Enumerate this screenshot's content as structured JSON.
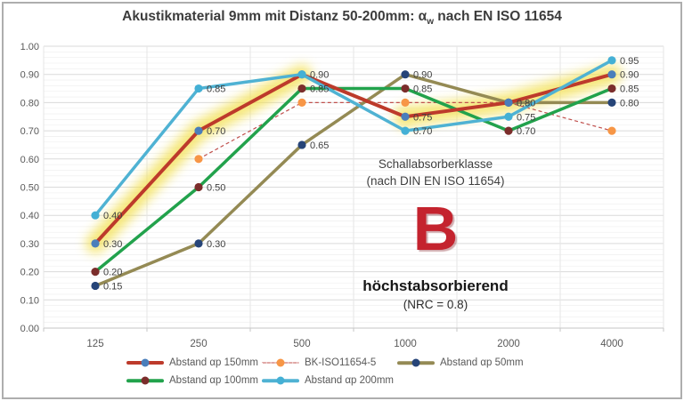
{
  "title": {
    "prefix": "Akustikmaterial 9mm mit Distanz 50-200mm: α",
    "sub": "w",
    "suffix": " nach EN ISO 11654"
  },
  "annotations": {
    "class_heading_line1": "Schallabsorberklasse",
    "class_heading_line2": "(nach DIN EN ISO 11654)",
    "class_letter": "B",
    "class_letter_color": "#c4232e",
    "class_description": "höchstabsorbierend",
    "nrc_note": "(NRC = 0.8)"
  },
  "legend": {
    "rows": [
      [
        0,
        1,
        2
      ],
      [
        3,
        4
      ]
    ]
  },
  "chart_data": {
    "type": "line",
    "title": "Akustikmaterial 9mm mit Distanz 50-200mm: αw nach EN ISO 11654",
    "xlabel": "",
    "ylabel": "",
    "x_type": "category",
    "categories": [
      "125",
      "250",
      "500",
      "1000",
      "2000",
      "4000"
    ],
    "ylim": [
      0.0,
      1.0
    ],
    "ytick_step": 0.1,
    "ytick_labels": [
      "1.00",
      "0.90",
      "0.80",
      "0.70",
      "0.60",
      "0.50",
      "0.40",
      "0.30",
      "0.20",
      "0.10",
      "0.00"
    ],
    "grid": true,
    "minor_grid": true,
    "legend_position": "bottom",
    "series": [
      {
        "name": "Abstand αp 150mm",
        "values": [
          0.3,
          0.7,
          0.9,
          0.75,
          0.8,
          0.9
        ],
        "line_color": "#bd3a2b",
        "marker_color": "#4a7ebb",
        "line_width": 4,
        "dash": null,
        "labels": [
          true,
          true,
          true,
          true,
          false,
          true
        ]
      },
      {
        "name": "BK-ISO11654-5",
        "values": [
          null,
          0.6,
          0.8,
          0.8,
          0.8,
          0.7
        ],
        "line_color": "#c0504d",
        "marker_color": "#f79646",
        "line_width": 1.2,
        "dash": "4 3",
        "labels": [
          false,
          false,
          false,
          false,
          false,
          false
        ]
      },
      {
        "name": "Abstand  αp 50mm",
        "values": [
          0.15,
          0.3,
          0.65,
          0.9,
          0.8,
          0.8
        ],
        "line_color": "#948a54",
        "marker_color": "#264478",
        "line_width": 3.5,
        "dash": null,
        "labels": [
          true,
          true,
          true,
          true,
          true,
          true
        ]
      },
      {
        "name": "Abstand  αp 100mm",
        "values": [
          0.2,
          0.5,
          0.85,
          0.85,
          0.7,
          0.85
        ],
        "line_color": "#22a24c",
        "marker_color": "#7b2d2b",
        "line_width": 3.5,
        "dash": null,
        "labels": [
          true,
          true,
          true,
          true,
          true,
          true
        ]
      },
      {
        "name": "Abstand αp 200mm",
        "values": [
          0.4,
          0.85,
          0.9,
          0.7,
          0.75,
          0.95
        ],
        "line_color": "#4fb2d3",
        "marker_color": "#44b0d5",
        "line_width": 3.5,
        "dash": null,
        "labels": [
          true,
          true,
          false,
          true,
          true,
          true
        ]
      }
    ],
    "highlights": {
      "color": "#f3e04f",
      "segments": [
        {
          "series": 0,
          "from": 0,
          "to": 2
        },
        {
          "series": 0,
          "from": 3,
          "to": 5
        }
      ],
      "points": [
        {
          "series": 0,
          "at": 3
        }
      ]
    }
  }
}
